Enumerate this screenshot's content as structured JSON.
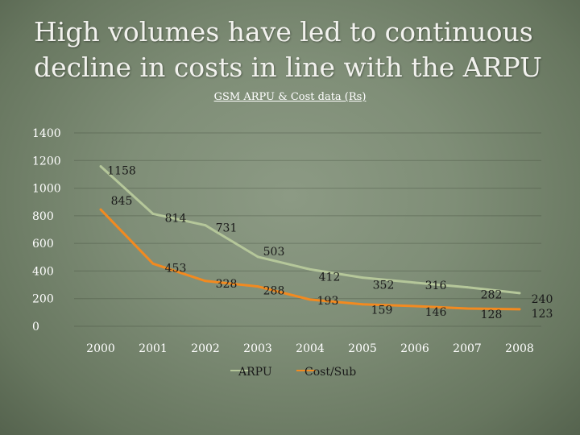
{
  "slide": {
    "title": "High volumes have led to continuous decline in costs in line with the ARPU"
  },
  "chart_data": {
    "type": "line",
    "title": "GSM ARPU & Cost data (Rs)",
    "xlabel": "",
    "ylabel": "",
    "x": [
      "2000",
      "2001",
      "2002",
      "2003",
      "2004",
      "2005",
      "2006",
      "2007",
      "2008"
    ],
    "ylim": [
      0,
      1400
    ],
    "yticks": [
      0,
      200,
      400,
      600,
      800,
      1000,
      1200,
      1400
    ],
    "grid": true,
    "legend_position": "bottom",
    "series": [
      {
        "name": "ARPU",
        "color": "#b5c79a",
        "values": [
          1158,
          814,
          731,
          503,
          412,
          352,
          316,
          282,
          240
        ]
      },
      {
        "name": "Cost/Sub",
        "color": "#f28a20",
        "values": [
          845,
          453,
          328,
          288,
          193,
          159,
          146,
          128,
          123
        ]
      }
    ]
  }
}
